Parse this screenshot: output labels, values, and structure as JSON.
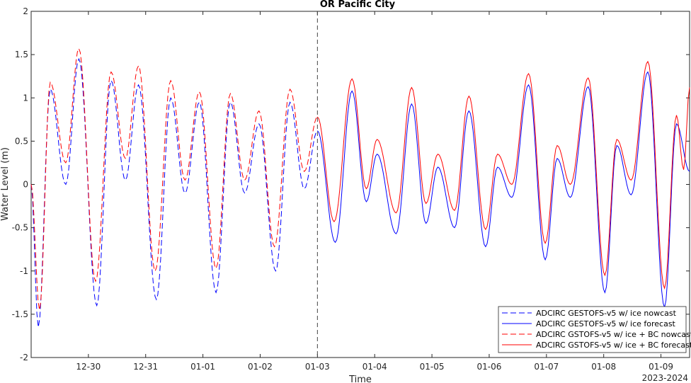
{
  "chart_data": {
    "type": "line",
    "title": "OR Pacific City",
    "xlabel": "Time",
    "ylabel": "Water Level (m)",
    "year_label": "2023-2024",
    "ylim": [
      -2,
      2
    ],
    "yticks": [
      "-2",
      "-1.5",
      "-1",
      "-0.5",
      "0",
      "0.5",
      "1",
      "1.5",
      "2"
    ],
    "xlim": [
      "2023-12-29T00:00",
      "2024-01-09T12:00"
    ],
    "xticks": [
      {
        "t": "2023-12-30T00:00",
        "label": "12-30"
      },
      {
        "t": "2023-12-31T00:00",
        "label": "12-31"
      },
      {
        "t": "2024-01-01T00:00",
        "label": "01-01"
      },
      {
        "t": "2024-01-02T00:00",
        "label": "01-02"
      },
      {
        "t": "2024-01-03T00:00",
        "label": "01-03"
      },
      {
        "t": "2024-01-04T00:00",
        "label": "01-04"
      },
      {
        "t": "2024-01-05T00:00",
        "label": "01-05"
      },
      {
        "t": "2024-01-06T00:00",
        "label": "01-06"
      },
      {
        "t": "2024-01-07T00:00",
        "label": "01-07"
      },
      {
        "t": "2024-01-08T00:00",
        "label": "01-08"
      },
      {
        "t": "2024-01-09T00:00",
        "label": "01-09"
      }
    ],
    "vline": "2024-01-03T00:00",
    "grid": false,
    "legend_position": "bottom-right",
    "series": [
      {
        "name": "ADCIRC GESTOFS-v5 w/ ice nowcast",
        "color": "#0000ff",
        "style": "dashed",
        "points": [
          [
            "2023-12-29T00:00",
            0.0
          ],
          [
            "2023-12-29T03:00",
            -1.65
          ],
          [
            "2023-12-29T08:00",
            1.1
          ],
          [
            "2023-12-29T14:30",
            0.0
          ],
          [
            "2023-12-29T20:00",
            1.45
          ],
          [
            "2023-12-30T03:30",
            -1.4
          ],
          [
            "2023-12-30T09:30",
            1.2
          ],
          [
            "2023-12-30T15:30",
            0.05
          ],
          [
            "2023-12-30T21:00",
            1.15
          ],
          [
            "2023-12-31T04:30",
            -1.33
          ],
          [
            "2023-12-31T10:30",
            1.0
          ],
          [
            "2023-12-31T16:30",
            -0.1
          ],
          [
            "2023-12-31T22:30",
            0.95
          ],
          [
            "2024-01-01T05:30",
            -1.25
          ],
          [
            "2024-01-01T11:30",
            0.95
          ],
          [
            "2024-01-01T17:30",
            -0.1
          ],
          [
            "2024-01-01T23:30",
            0.7
          ],
          [
            "2024-01-02T06:30",
            -1.0
          ],
          [
            "2024-01-02T12:30",
            0.95
          ],
          [
            "2024-01-02T18:30",
            -0.05
          ],
          [
            "2024-01-03T00:00",
            0.62
          ]
        ]
      },
      {
        "name": "ADCIRC GESTOFS-v5 w/ ice forecast",
        "color": "#0000ff",
        "style": "solid",
        "points": [
          [
            "2024-01-03T00:00",
            0.62
          ],
          [
            "2024-01-03T07:30",
            -0.67
          ],
          [
            "2024-01-03T14:30",
            1.08
          ],
          [
            "2024-01-03T20:30",
            -0.2
          ],
          [
            "2024-01-04T01:00",
            0.35
          ],
          [
            "2024-01-04T09:00",
            -0.57
          ],
          [
            "2024-01-04T15:30",
            0.93
          ],
          [
            "2024-01-04T21:30",
            -0.45
          ],
          [
            "2024-01-05T02:30",
            0.2
          ],
          [
            "2024-01-05T09:30",
            -0.5
          ],
          [
            "2024-01-05T15:30",
            0.85
          ],
          [
            "2024-01-05T22:30",
            -0.72
          ],
          [
            "2024-01-06T03:30",
            0.2
          ],
          [
            "2024-01-06T09:30",
            -0.15
          ],
          [
            "2024-01-06T16:30",
            1.15
          ],
          [
            "2024-01-06T23:30",
            -0.87
          ],
          [
            "2024-01-07T04:30",
            0.3
          ],
          [
            "2024-01-07T10:00",
            -0.15
          ],
          [
            "2024-01-07T17:30",
            1.13
          ],
          [
            "2024-01-08T00:30",
            -1.25
          ],
          [
            "2024-01-08T05:30",
            0.45
          ],
          [
            "2024-01-08T11:30",
            -0.12
          ],
          [
            "2024-01-08T18:30",
            1.3
          ],
          [
            "2024-01-09T01:30",
            -1.42
          ],
          [
            "2024-01-09T06:30",
            0.7
          ],
          [
            "2024-01-09T12:00",
            0.15
          ]
        ]
      },
      {
        "name": "ADCIRC GSTOFS-v5 w/ ice + BC nowcast",
        "color": "#ff0000",
        "style": "dashed",
        "points": [
          [
            "2023-12-29T00:00",
            0.0
          ],
          [
            "2023-12-29T03:30",
            -1.45
          ],
          [
            "2023-12-29T08:00",
            1.18
          ],
          [
            "2023-12-29T14:30",
            0.25
          ],
          [
            "2023-12-29T20:00",
            1.57
          ],
          [
            "2023-12-30T03:00",
            -1.12
          ],
          [
            "2023-12-30T09:30",
            1.3
          ],
          [
            "2023-12-30T15:30",
            0.3
          ],
          [
            "2023-12-30T21:00",
            1.37
          ],
          [
            "2023-12-31T04:00",
            -1.0
          ],
          [
            "2023-12-31T10:30",
            1.2
          ],
          [
            "2023-12-31T16:30",
            0.05
          ],
          [
            "2023-12-31T22:30",
            1.07
          ],
          [
            "2024-01-01T05:30",
            -0.97
          ],
          [
            "2024-01-01T11:30",
            1.05
          ],
          [
            "2024-01-01T17:30",
            0.05
          ],
          [
            "2024-01-01T23:30",
            0.85
          ],
          [
            "2024-01-02T06:00",
            -0.72
          ],
          [
            "2024-01-02T12:30",
            1.1
          ],
          [
            "2024-01-02T18:30",
            0.15
          ],
          [
            "2024-01-03T00:00",
            0.78
          ]
        ]
      },
      {
        "name": "ADCIRC GSTOFS-v5 w/ ice + BC forecast",
        "color": "#ff0000",
        "style": "solid",
        "points": [
          [
            "2024-01-03T00:00",
            0.78
          ],
          [
            "2024-01-03T07:00",
            -0.43
          ],
          [
            "2024-01-03T14:30",
            1.22
          ],
          [
            "2024-01-03T20:30",
            -0.05
          ],
          [
            "2024-01-04T01:00",
            0.52
          ],
          [
            "2024-01-04T09:00",
            -0.33
          ],
          [
            "2024-01-04T15:30",
            1.12
          ],
          [
            "2024-01-04T21:30",
            -0.22
          ],
          [
            "2024-01-05T02:30",
            0.35
          ],
          [
            "2024-01-05T09:30",
            -0.3
          ],
          [
            "2024-01-05T15:30",
            1.02
          ],
          [
            "2024-01-05T22:30",
            -0.52
          ],
          [
            "2024-01-06T03:30",
            0.35
          ],
          [
            "2024-01-06T09:30",
            0.0
          ],
          [
            "2024-01-06T16:30",
            1.28
          ],
          [
            "2024-01-06T23:30",
            -0.68
          ],
          [
            "2024-01-07T04:30",
            0.45
          ],
          [
            "2024-01-07T10:00",
            0.0
          ],
          [
            "2024-01-07T17:30",
            1.23
          ],
          [
            "2024-01-08T00:30",
            -1.05
          ],
          [
            "2024-01-08T05:30",
            0.52
          ],
          [
            "2024-01-08T11:30",
            0.05
          ],
          [
            "2024-01-08T18:30",
            1.42
          ],
          [
            "2024-01-09T01:30",
            -1.2
          ],
          [
            "2024-01-09T06:30",
            0.8
          ],
          [
            "2024-01-09T09:30",
            0.17
          ],
          [
            "2024-01-09T12:00",
            1.12
          ]
        ]
      }
    ]
  }
}
